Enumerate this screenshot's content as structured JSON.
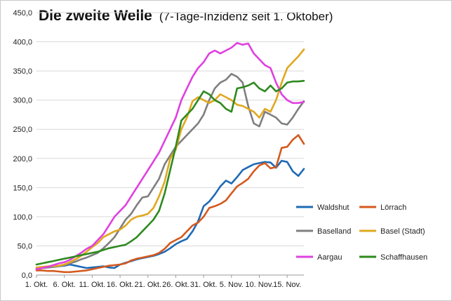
{
  "chart_data": {
    "type": "line",
    "title": "Die zweite Welle",
    "subtitle": "(7-Tage-Inzidenz seit 1. Oktober)",
    "xlabel": "",
    "ylabel": "",
    "ylim": [
      0,
      450
    ],
    "yticks": [
      "0,0",
      "50,0",
      "100,0",
      "150,0",
      "200,0",
      "250,0",
      "300,0",
      "350,0",
      "400,0",
      "450,0"
    ],
    "xtick_labels": [
      "1. Okt.",
      "6. Okt.",
      "11. Okt.",
      "16. Okt.",
      "21. Okt.",
      "26. Okt.",
      "31. Okt.",
      "5. Nov.",
      "10. Nov.",
      "15. Nov."
    ],
    "grid": "horizontal",
    "series": [
      {
        "name": "Waldshut",
        "color": "#1f6ab5",
        "values": [
          10,
          12,
          13,
          14,
          15,
          16,
          18,
          16,
          14,
          12,
          13,
          14,
          15,
          13,
          12,
          18,
          21,
          24,
          27,
          29,
          31,
          33,
          36,
          40,
          46,
          53,
          58,
          62,
          75,
          92,
          118,
          126,
          138,
          152,
          162,
          157,
          168,
          180,
          185,
          190,
          192,
          194,
          193,
          184,
          196,
          194,
          178,
          170,
          182
        ]
      },
      {
        "name": "Lörrach",
        "color": "#d45a1e",
        "values": [
          8,
          8,
          7,
          7,
          6,
          5,
          5,
          6,
          7,
          8,
          10,
          12,
          14,
          16,
          17,
          18,
          20,
          25,
          28,
          30,
          32,
          34,
          38,
          45,
          55,
          60,
          65,
          75,
          85,
          90,
          100,
          115,
          118,
          122,
          128,
          140,
          152,
          158,
          165,
          178,
          188,
          192,
          183,
          185,
          218,
          220,
          232,
          240,
          225
        ]
      },
      {
        "name": "Baselland",
        "color": "#7f7f7f",
        "values": [
          12,
          12,
          13,
          14,
          15,
          17,
          20,
          23,
          27,
          30,
          34,
          38,
          46,
          55,
          65,
          80,
          95,
          105,
          120,
          133,
          135,
          150,
          165,
          190,
          205,
          220,
          230,
          240,
          250,
          260,
          275,
          300,
          320,
          330,
          335,
          345,
          340,
          330,
          290,
          260,
          255,
          280,
          275,
          270,
          260,
          258,
          270,
          285,
          298
        ]
      },
      {
        "name": "Basel (Stadt)",
        "color": "#e0a820",
        "values": [
          13,
          14,
          15,
          15,
          16,
          18,
          22,
          27,
          33,
          40,
          48,
          55,
          65,
          70,
          75,
          78,
          85,
          95,
          100,
          102,
          105,
          115,
          135,
          160,
          200,
          215,
          250,
          270,
          298,
          305,
          300,
          295,
          300,
          310,
          305,
          300,
          292,
          290,
          285,
          280,
          270,
          285,
          280,
          300,
          330,
          355,
          365,
          375,
          387
        ]
      },
      {
        "name": "Aargau",
        "color": "#e040e0",
        "values": [
          10,
          12,
          14,
          17,
          20,
          22,
          26,
          32,
          38,
          45,
          50,
          60,
          70,
          85,
          100,
          110,
          120,
          135,
          150,
          165,
          180,
          195,
          210,
          230,
          250,
          270,
          300,
          320,
          340,
          355,
          365,
          380,
          385,
          380,
          385,
          390,
          398,
          395,
          397,
          380,
          370,
          360,
          355,
          330,
          310,
          300,
          295,
          295,
          297
        ]
      },
      {
        "name": "Schaffhausen",
        "color": "#2e8a1e",
        "values": [
          18,
          20,
          22,
          24,
          26,
          28,
          30,
          32,
          34,
          36,
          38,
          40,
          43,
          46,
          48,
          50,
          52,
          58,
          65,
          75,
          85,
          95,
          110,
          140,
          180,
          220,
          265,
          275,
          285,
          300,
          315,
          310,
          300,
          295,
          285,
          280,
          320,
          322,
          325,
          330,
          320,
          315,
          325,
          315,
          320,
          330,
          332,
          332,
          333
        ]
      }
    ]
  }
}
